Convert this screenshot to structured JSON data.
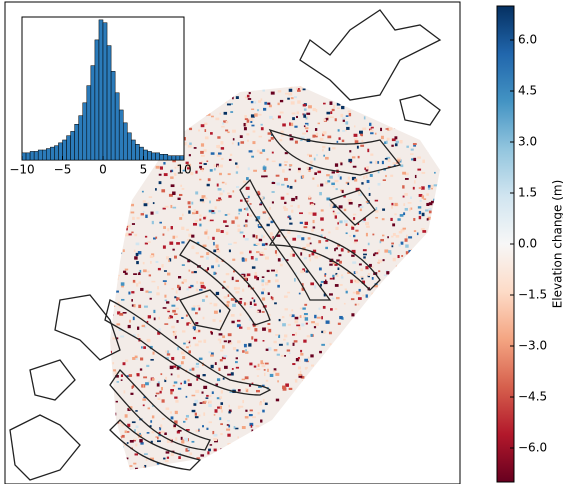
{
  "histogram": {
    "bins": [
      -10,
      -9.5,
      -9,
      -8.5,
      -8,
      -7.5,
      -7,
      -6.5,
      -6,
      -5.5,
      -5,
      -4.5,
      -4,
      -3.5,
      -3,
      -2.5,
      -2,
      -1.5,
      -1,
      -0.5,
      0,
      0.5,
      1,
      1.5,
      2,
      2.5,
      3,
      3.5,
      4,
      4.5,
      5,
      5.5,
      6,
      6.5,
      7,
      7.5,
      8,
      8.5,
      9,
      9.5,
      10
    ],
    "counts": [
      5,
      5,
      6,
      6,
      7,
      7,
      8,
      9,
      10,
      12,
      14,
      17,
      20,
      25,
      31,
      40,
      52,
      66,
      84,
      98,
      96,
      80,
      62,
      47,
      35,
      26,
      19,
      14,
      11,
      9,
      7,
      6,
      5,
      5,
      4,
      4,
      3,
      3,
      3,
      3
    ],
    "color": "#2b7bba",
    "xlim": [
      -10,
      10
    ],
    "ylim": [
      0,
      100
    ],
    "xticks": [
      {
        "value": -10,
        "label": "−10"
      },
      {
        "value": -5,
        "label": "−5"
      },
      0,
      5,
      10
    ]
  },
  "colorbar": {
    "label": "Elevation change (m)",
    "lim": [
      -7,
      7
    ],
    "colors": [
      "#67001f",
      "#b2182b",
      "#d6604d",
      "#f4a582",
      "#fddbc7",
      "#f7f7f7",
      "#d1e5f0",
      "#92c5de",
      "#4393c3",
      "#2166ac",
      "#053061"
    ],
    "ticks": [
      {
        "value": 6,
        "label": "6.0"
      },
      {
        "value": 4.5,
        "label": "4.5"
      },
      {
        "value": 3,
        "label": "3.0"
      },
      {
        "value": 1.5,
        "label": "1.5"
      },
      {
        "value": 0,
        "label": "0.0"
      },
      {
        "value": -1.5,
        "label": "−1.5"
      },
      {
        "value": -3,
        "label": "−3.0"
      },
      {
        "value": -4.5,
        "label": "−4.5"
      },
      {
        "value": -6,
        "label": "−6.0"
      }
    ]
  }
}
